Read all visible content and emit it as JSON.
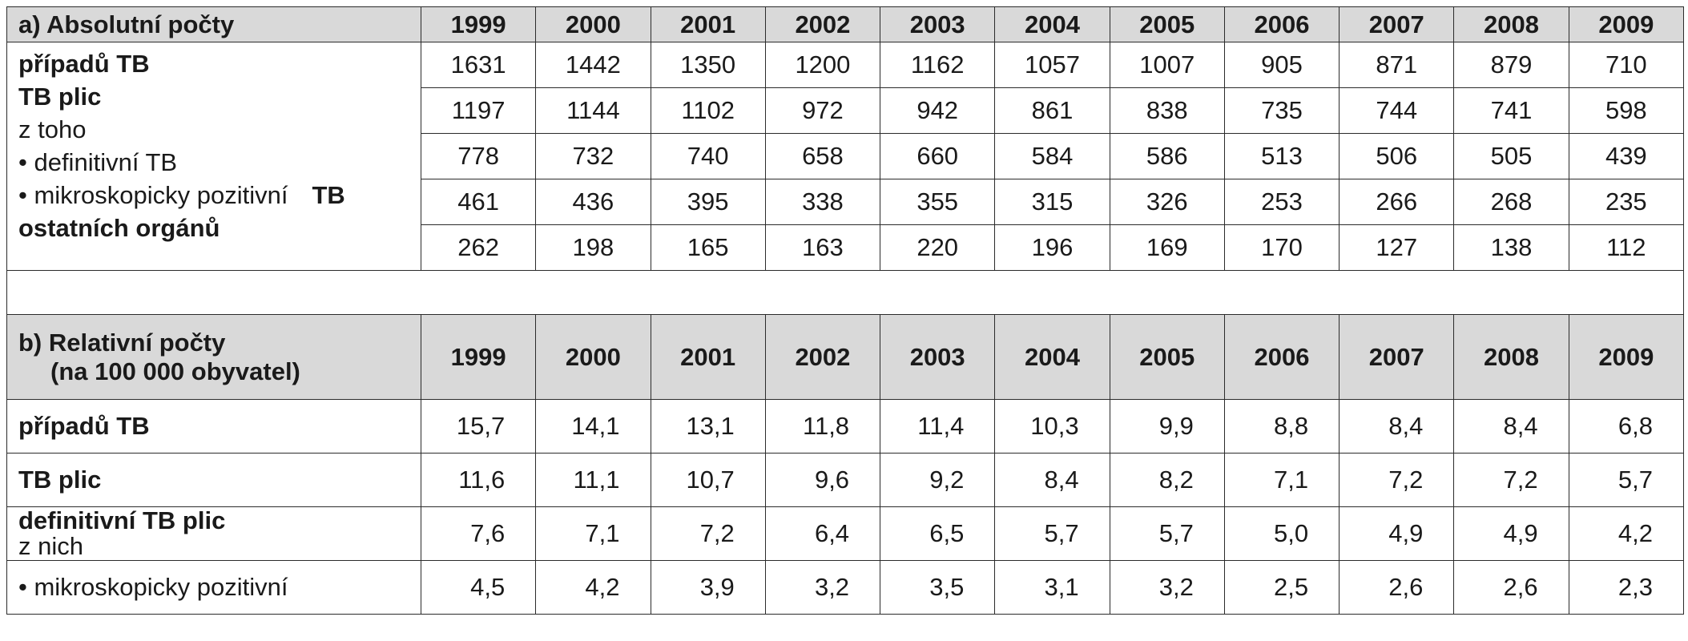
{
  "years": [
    "1999",
    "2000",
    "2001",
    "2002",
    "2003",
    "2004",
    "2005",
    "2006",
    "2007",
    "2008",
    "2009"
  ],
  "section_a": {
    "title": "a) Absolutní počty",
    "label_lines": [
      "případů TB",
      "TB plic",
      "z toho",
      "• definitivní TB",
      "• mikroskopicky pozitivní",
      "TB",
      "ostatních orgánů"
    ],
    "rows": [
      [
        "1631",
        "1442",
        "1350",
        "1200",
        "1162",
        "1057",
        "1007",
        "905",
        "871",
        "879",
        "710"
      ],
      [
        "1197",
        "1144",
        "1102",
        "972",
        "942",
        "861",
        "838",
        "735",
        "744",
        "741",
        "598"
      ],
      [
        "778",
        "732",
        "740",
        "658",
        "660",
        "584",
        "586",
        "513",
        "506",
        "505",
        "439"
      ],
      [
        "461",
        "436",
        "395",
        "338",
        "355",
        "315",
        "326",
        "253",
        "266",
        "268",
        "235"
      ],
      [
        "262",
        "198",
        "165",
        "163",
        "220",
        "196",
        "169",
        "170",
        "127",
        "138",
        "112"
      ]
    ]
  },
  "section_b": {
    "title_line1": "b) Relativní počty",
    "title_line2": "(na 100 000 obyvatel)",
    "rows": [
      {
        "label": "případů TB",
        "label2": "",
        "values": [
          "15,7",
          "14,1",
          "13,1",
          "11,8",
          "11,4",
          "10,3",
          "9,9",
          "8,8",
          "8,4",
          "8,4",
          "6,8"
        ]
      },
      {
        "label": "TB plic",
        "label2": "",
        "values": [
          "11,6",
          "11,1",
          "10,7",
          "9,6",
          "9,2",
          "8,4",
          "8,2",
          "7,1",
          "7,2",
          "7,2",
          "5,7"
        ]
      },
      {
        "label": "definitivní TB plic",
        "label2": "z nich",
        "values": [
          "7,6",
          "7,1",
          "7,2",
          "6,4",
          "6,5",
          "5,7",
          "5,7",
          "5,0",
          "4,9",
          "4,9",
          "4,2"
        ]
      },
      {
        "label": "• mikroskopicky pozitivní",
        "label2": "",
        "values": [
          "4,5",
          "4,2",
          "3,9",
          "3,2",
          "3,5",
          "3,1",
          "3,2",
          "2,5",
          "2,6",
          "2,6",
          "2,3"
        ]
      }
    ]
  }
}
